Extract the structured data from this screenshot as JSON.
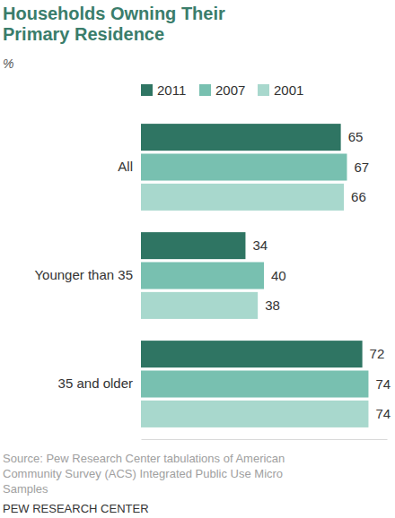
{
  "chart_data": {
    "type": "bar",
    "orientation": "horizontal",
    "title": "Households Owning Their Primary Residence",
    "subtitle": "%",
    "categories": [
      "All",
      "Younger than 35",
      "35 and older"
    ],
    "series": [
      {
        "name": "2011",
        "color": "#2f7563",
        "values": [
          65,
          34,
          72
        ]
      },
      {
        "name": "2007",
        "color": "#78c0b0",
        "values": [
          67,
          40,
          74
        ]
      },
      {
        "name": "2001",
        "color": "#a8d8cd",
        "values": [
          66,
          38,
          74
        ]
      }
    ],
    "xlim": [
      0,
      80
    ],
    "data_labels": true,
    "tick_labels": false,
    "legend": "top",
    "source": "Source: Pew Research Center tabulations of American Community Survey (ACS) Integrated Public Use Micro Samples",
    "credit": "PEW RESEARCH CENTER"
  }
}
